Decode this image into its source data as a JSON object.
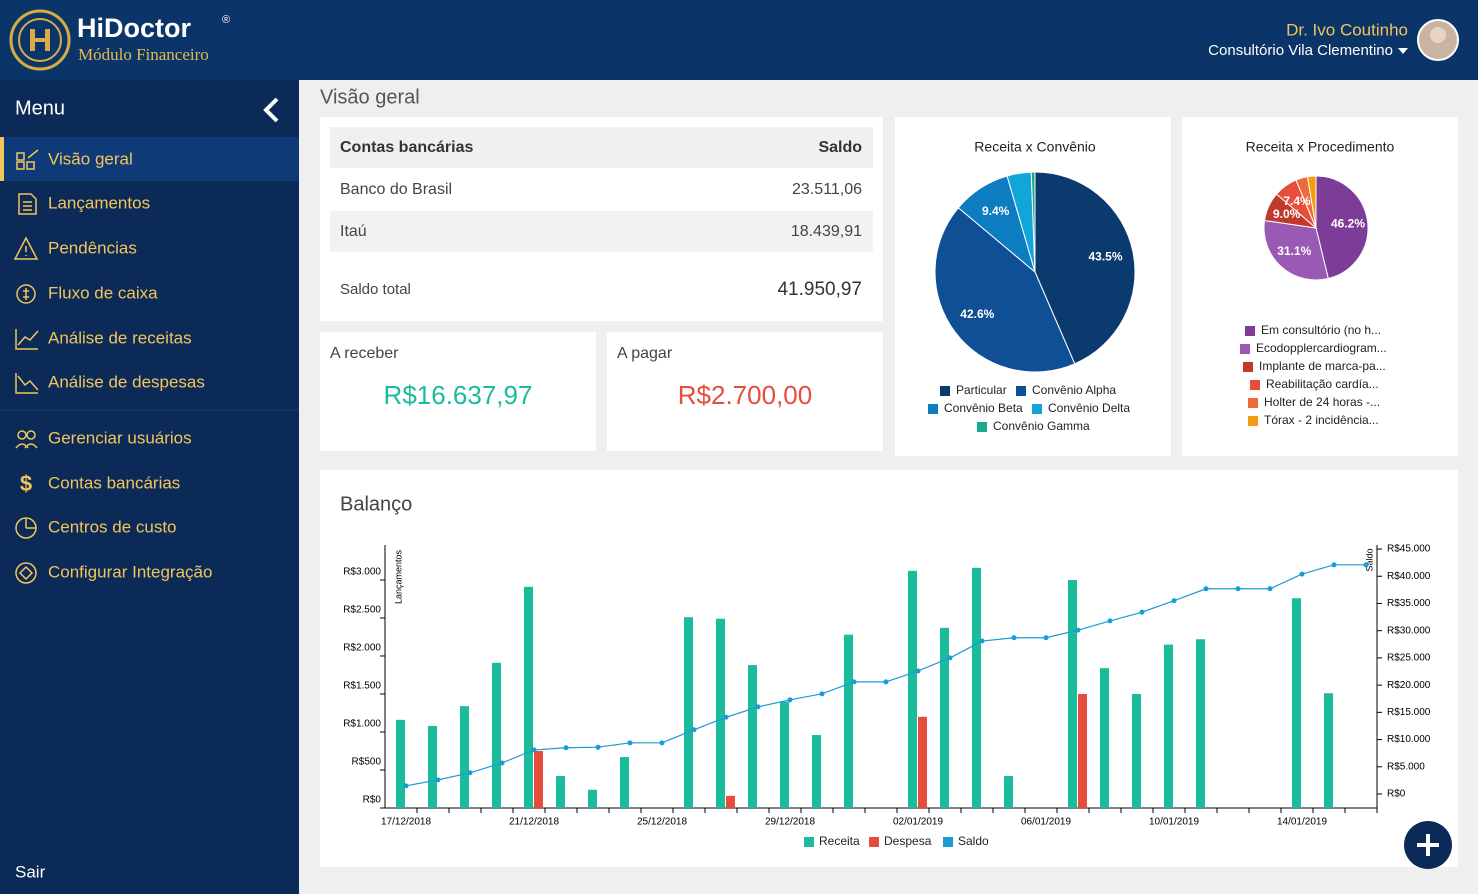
{
  "header": {
    "brand": "HiDoctor",
    "trademark": "®",
    "module": "Módulo Financeiro",
    "user": "Dr. Ivo Coutinho",
    "clinic": "Consultório Vila Clementino"
  },
  "menu": {
    "title": "Menu",
    "items": [
      "Visão geral",
      "Lançamentos",
      "Pendências",
      "Fluxo de caixa",
      "Análise de receitas",
      "Análise de despesas"
    ],
    "admin_items": [
      "Gerenciar usuários",
      "Contas bancárias",
      "Centros de custo",
      "Configurar Integração"
    ],
    "logout": "Sair"
  },
  "page_title": "Visão geral",
  "accounts": {
    "header": [
      "Contas bancárias",
      "Saldo"
    ],
    "rows": [
      [
        "Banco do Brasil",
        "23.511,06"
      ],
      [
        "Itaú",
        "18.439,91"
      ]
    ],
    "total": [
      "Saldo total",
      "41.950,97"
    ]
  },
  "receivable": {
    "label": "A receber",
    "value": "R$16.637,97"
  },
  "payable": {
    "label": "A pagar",
    "value": "R$2.700,00"
  },
  "chart_data": [
    {
      "type": "pie",
      "title": "Receita x Convênio",
      "categories": [
        "Particular",
        "Convênio Alpha",
        "Convênio Beta",
        "Convênio Delta",
        "Convênio Gamma"
      ],
      "values": [
        43.5,
        42.6,
        9.4,
        3.9,
        0.6
      ],
      "value_labels": [
        "43.5%",
        "42.6%",
        "9.4%",
        null,
        null
      ],
      "colors": [
        "#0b3a6f",
        "#0f4f96",
        "#0d7cc1",
        "#12a5da",
        "#1aa98c"
      ]
    },
    {
      "type": "pie",
      "title": "Receita x Procedimento",
      "categories": [
        "Em consultório (no h...",
        "Ecodopplercardiogram...",
        "Implante de marca-pa...",
        "Reabilitação cardía...",
        "Holter de 24 horas -...",
        "Tórax - 2 incidência..."
      ],
      "values": [
        46.2,
        31.1,
        9.0,
        7.4,
        3.7,
        2.6
      ],
      "value_labels": [
        "46.2%",
        "31.1%",
        "9.0%",
        "7.4%",
        null,
        null
      ],
      "colors": [
        "#7d3c98",
        "#9b59b6",
        "#c0392b",
        "#e74c3c",
        "#ed6a3c",
        "#f39c12"
      ]
    },
    {
      "type": "bar_line",
      "title": "Balanço",
      "categories": [
        "17/12/2018",
        null,
        null,
        null,
        "21/12/2018",
        null,
        null,
        null,
        "25/12/2018",
        null,
        null,
        null,
        "29/12/2018",
        null,
        null,
        null,
        "02/01/2019",
        null,
        null,
        null,
        "06/01/2019",
        null,
        null,
        null,
        "10/01/2019",
        null,
        null,
        null,
        "14/01/2019",
        null,
        null
      ],
      "series": [
        {
          "name": "Receita",
          "color": "#1abc9c",
          "values": [
            1160,
            1080,
            1340,
            1910,
            2910,
            420,
            240,
            670,
            null,
            2510,
            2490,
            1880,
            1400,
            960,
            2280,
            null,
            3120,
            2370,
            3160,
            420,
            null,
            3000,
            1840,
            1500,
            2150,
            2220,
            null,
            null,
            2760,
            1510,
            null
          ]
        },
        {
          "name": "Despesa",
          "color": "#e74c3c",
          "values": [
            null,
            null,
            null,
            null,
            750,
            null,
            null,
            null,
            null,
            null,
            160,
            null,
            null,
            null,
            null,
            null,
            1200,
            null,
            null,
            null,
            null,
            1500,
            null,
            null,
            null,
            null,
            null,
            null,
            null,
            null,
            null
          ]
        },
        {
          "name": "Saldo",
          "color": "#1a9bd7",
          "axis": "y2",
          "values": [
            1500,
            2600,
            3900,
            5700,
            8100,
            8500,
            8600,
            9400,
            9400,
            11800,
            14100,
            16000,
            17300,
            18400,
            20600,
            20600,
            22600,
            25000,
            28100,
            28700,
            28700,
            30100,
            31800,
            33400,
            35500,
            37700,
            37700,
            37700,
            40400,
            42100,
            42100
          ]
        }
      ],
      "ylabel": "Lançamentos",
      "y2label": "Saldo",
      "ylim": [
        0,
        3460
      ],
      "yticks": [
        {
          "value": 0,
          "label": "R$0"
        },
        {
          "value": 500,
          "label": "R$500"
        },
        {
          "value": 1000,
          "label": "R$1.000"
        },
        {
          "value": 1500,
          "label": "R$1.500"
        },
        {
          "value": 2000,
          "label": "R$2.000"
        },
        {
          "value": 2500,
          "label": "R$2.500"
        },
        {
          "value": 3000,
          "label": "R$3.000"
        }
      ],
      "y2lim": [
        -2570,
        45740
      ],
      "y2ticks": [
        {
          "value": 0,
          "label": "R$0"
        },
        {
          "value": 5000,
          "label": "R$5.000"
        },
        {
          "value": 10000,
          "label": "R$10.000"
        },
        {
          "value": 15000,
          "label": "R$15.000"
        },
        {
          "value": 20000,
          "label": "R$20.000"
        },
        {
          "value": 25000,
          "label": "R$25.000"
        },
        {
          "value": 30000,
          "label": "R$30.000"
        },
        {
          "value": 35000,
          "label": "R$35.000"
        },
        {
          "value": 40000,
          "label": "R$40.000"
        },
        {
          "value": 45000,
          "label": "R$45.000"
        }
      ]
    }
  ]
}
